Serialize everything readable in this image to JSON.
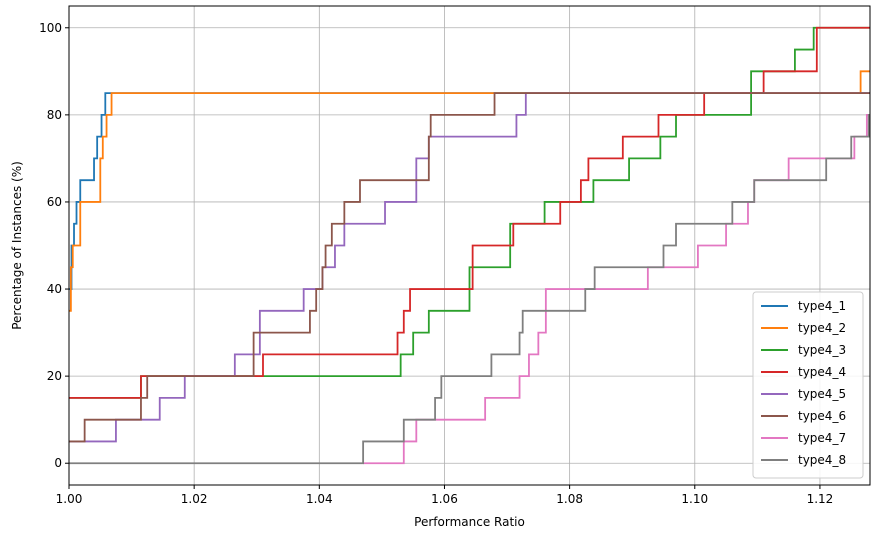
{
  "chart_data": {
    "type": "line",
    "step": true,
    "xlabel": "Performance Ratio",
    "ylabel": "Percentage of Instances (%)",
    "xlim": [
      1.0,
      1.128
    ],
    "ylim": [
      -5,
      105
    ],
    "x_ticks": [
      {
        "value": 1.0,
        "label": "1.00"
      },
      {
        "value": 1.02,
        "label": "1.02"
      },
      {
        "value": 1.04,
        "label": "1.04"
      },
      {
        "value": 1.06,
        "label": "1.06"
      },
      {
        "value": 1.08,
        "label": "1.08"
      },
      {
        "value": 1.1,
        "label": "1.10"
      },
      {
        "value": 1.12,
        "label": "1.12"
      }
    ],
    "y_ticks": [
      {
        "value": 0,
        "label": "0"
      },
      {
        "value": 20,
        "label": "20"
      },
      {
        "value": 40,
        "label": "40"
      },
      {
        "value": 60,
        "label": "60"
      },
      {
        "value": 80,
        "label": "80"
      },
      {
        "value": 100,
        "label": "100"
      }
    ],
    "grid": true,
    "legend_position": "lower-right",
    "series": [
      {
        "name": "type4_1",
        "color": "#1f77b4",
        "x": [
          1.0,
          1.0004,
          1.0008,
          1.0012,
          1.0018,
          1.004,
          1.0045,
          1.0052,
          1.0058,
          1.128
        ],
        "y": [
          40,
          50,
          55,
          60,
          65,
          70,
          75,
          80,
          85,
          85
        ]
      },
      {
        "name": "type4_2",
        "color": "#ff7f0e",
        "x": [
          1.0,
          1.0003,
          1.0006,
          1.0018,
          1.005,
          1.0054,
          1.006,
          1.0068,
          1.0072,
          1.1253,
          1.1265,
          1.128
        ],
        "y": [
          35,
          45,
          50,
          60,
          70,
          75,
          80,
          85,
          85,
          85,
          90,
          90
        ]
      },
      {
        "name": "type4_3",
        "color": "#2ca02c",
        "x": [
          1.0,
          1.0115,
          1.053,
          1.055,
          1.0575,
          1.064,
          1.0705,
          1.076,
          1.0838,
          1.0895,
          1.0945,
          1.097,
          1.109,
          1.116,
          1.119,
          1.128
        ],
        "y": [
          15,
          20,
          25,
          30,
          35,
          45,
          55,
          60,
          65,
          70,
          75,
          80,
          90,
          95,
          100,
          100
        ]
      },
      {
        "name": "type4_4",
        "color": "#d62728",
        "x": [
          1.0,
          1.0115,
          1.031,
          1.0525,
          1.0535,
          1.0545,
          1.0645,
          1.071,
          1.0785,
          1.0818,
          1.083,
          1.0885,
          1.0942,
          1.1015,
          1.111,
          1.1195,
          1.128
        ],
        "y": [
          15,
          20,
          25,
          30,
          35,
          40,
          50,
          55,
          60,
          65,
          70,
          75,
          80,
          85,
          90,
          100,
          100
        ]
      },
      {
        "name": "type4_5",
        "color": "#9467bd",
        "x": [
          1.0,
          1.0075,
          1.0145,
          1.0185,
          1.0265,
          1.0305,
          1.0375,
          1.0405,
          1.0425,
          1.044,
          1.0505,
          1.0555,
          1.0575,
          1.0715,
          1.073,
          1.128
        ],
        "y": [
          5,
          10,
          15,
          20,
          25,
          35,
          40,
          45,
          50,
          55,
          60,
          70,
          75,
          80,
          85,
          85
        ]
      },
      {
        "name": "type4_6",
        "color": "#8c564b",
        "x": [
          1.0,
          1.0025,
          1.0115,
          1.0125,
          1.0295,
          1.0385,
          1.0395,
          1.0405,
          1.041,
          1.042,
          1.044,
          1.0465,
          1.0575,
          1.0578,
          1.059,
          1.068,
          1.128
        ],
        "y": [
          5,
          10,
          15,
          20,
          30,
          35,
          40,
          45,
          50,
          55,
          60,
          65,
          75,
          80,
          80,
          85,
          85
        ]
      },
      {
        "name": "type4_7",
        "color": "#e377c2",
        "x": [
          1.047,
          1.0535,
          1.0555,
          1.0665,
          1.072,
          1.0735,
          1.075,
          1.0762,
          1.0925,
          1.1005,
          1.105,
          1.1085,
          1.1095,
          1.115,
          1.1255,
          1.1275,
          1.128
        ],
        "y": [
          0,
          5,
          10,
          15,
          20,
          25,
          30,
          40,
          45,
          50,
          55,
          60,
          65,
          70,
          75,
          80,
          80
        ]
      },
      {
        "name": "type4_8",
        "color": "#7f7f7f",
        "x": [
          1.0,
          1.047,
          1.0535,
          1.0585,
          1.0595,
          1.0675,
          1.072,
          1.0725,
          1.0825,
          1.084,
          1.095,
          1.097,
          1.106,
          1.1095,
          1.121,
          1.125,
          1.1278,
          1.128
        ],
        "y": [
          0,
          5,
          10,
          15,
          20,
          25,
          30,
          35,
          40,
          45,
          50,
          55,
          60,
          65,
          70,
          75,
          80,
          80
        ]
      }
    ]
  }
}
